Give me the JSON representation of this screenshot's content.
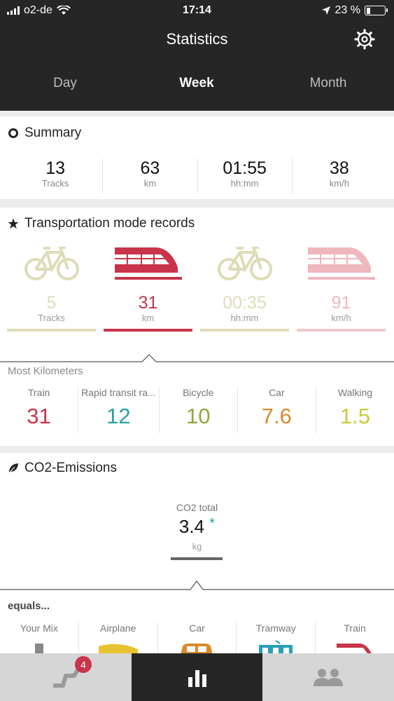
{
  "status_bar": {
    "carrier": "o2-de",
    "time": "17:14",
    "battery": "23 %"
  },
  "header": {
    "title": "Statistics"
  },
  "tabs": [
    {
      "label": "Day",
      "active": false
    },
    {
      "label": "Week",
      "active": true
    },
    {
      "label": "Month",
      "active": false
    }
  ],
  "summary": {
    "title": "Summary",
    "items": [
      {
        "value": "13",
        "unit": "Tracks"
      },
      {
        "value": "63",
        "unit": "km"
      },
      {
        "value": "01:55",
        "unit": "hh:mm"
      },
      {
        "value": "38",
        "unit": "km/h"
      }
    ]
  },
  "records": {
    "title": "Transportation mode records",
    "items": [
      {
        "icon": "bicycle-icon",
        "value": "5",
        "unit": "Tracks",
        "color": "#dcdcb8"
      },
      {
        "icon": "train-icon",
        "value": "31",
        "unit": "km",
        "color": "#c8344a"
      },
      {
        "icon": "bicycle-icon",
        "value": "00:35",
        "unit": "hh:mm",
        "color": "#dcdcb8"
      },
      {
        "icon": "train-icon",
        "value": "91",
        "unit": "km/h",
        "color": "#eeb8be"
      }
    ]
  },
  "most_km": {
    "title": "Most Kilometers",
    "items": [
      {
        "label": "Train",
        "value": "31",
        "color": "#c8344a"
      },
      {
        "label": "Rapid transit ra...",
        "value": "12",
        "color": "#2aa0a0"
      },
      {
        "label": "Bicycle",
        "value": "10",
        "color": "#96a43a"
      },
      {
        "label": "Car",
        "value": "7.6",
        "color": "#d88a2c"
      },
      {
        "label": "Walking",
        "value": "1.5",
        "color": "#c8cc3a"
      }
    ]
  },
  "co2": {
    "title": "CO2-Emissions",
    "label": "CO2 total",
    "value": "3.4",
    "asterisk": "*",
    "unit": "kg",
    "equals": "equals...",
    "comparisons": [
      {
        "label": "Your Mix",
        "color": "#888888"
      },
      {
        "label": "Airplane",
        "color": "#e8c230"
      },
      {
        "label": "Car",
        "color": "#d88a2c"
      },
      {
        "label": "Tramway",
        "color": "#2aa0b8"
      },
      {
        "label": "Train",
        "color": "#c8344a"
      }
    ]
  },
  "bottom_nav": {
    "badge": "4"
  }
}
